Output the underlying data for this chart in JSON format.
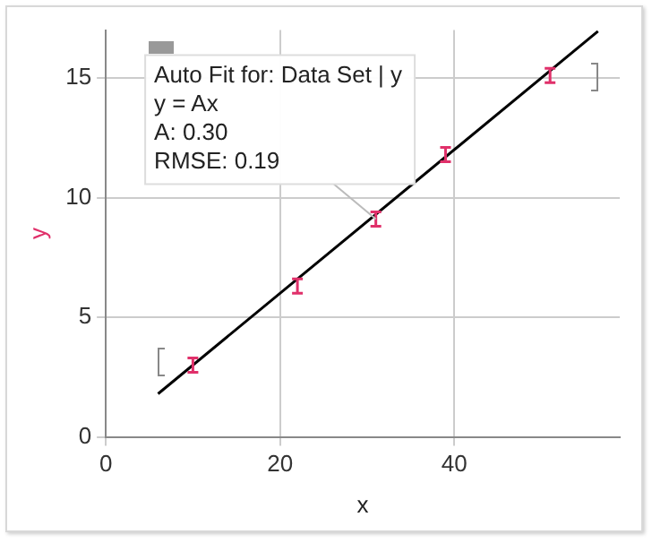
{
  "chart_data": {
    "type": "scatter",
    "xlabel": "x",
    "ylabel": "y",
    "xlim": [
      0,
      59
    ],
    "xticks": [
      0,
      20,
      40
    ],
    "ylim": [
      0,
      17
    ],
    "yticks": [
      0,
      5,
      10,
      15
    ],
    "grid": true,
    "legend": false,
    "series": [
      {
        "color": "#e0306a",
        "x": [
          10,
          22,
          31,
          39,
          51
        ],
        "values": [
          3.0,
          6.3,
          9.1,
          11.8,
          15.1
        ],
        "errors": [
          0.3,
          0.3,
          0.3,
          0.3,
          0.3
        ]
      },
      {
        "type": "line",
        "color": "#000000",
        "x": [
          6,
          56.5
        ],
        "values": [
          1.8,
          16.95
        ]
      }
    ],
    "annotations": [
      {
        "text": "Auto Fit for: Data Set | y\ny = Ax\nA: 0.30\nRMSE: 0.19",
        "x": 31,
        "y": 9.1
      }
    ]
  }
}
